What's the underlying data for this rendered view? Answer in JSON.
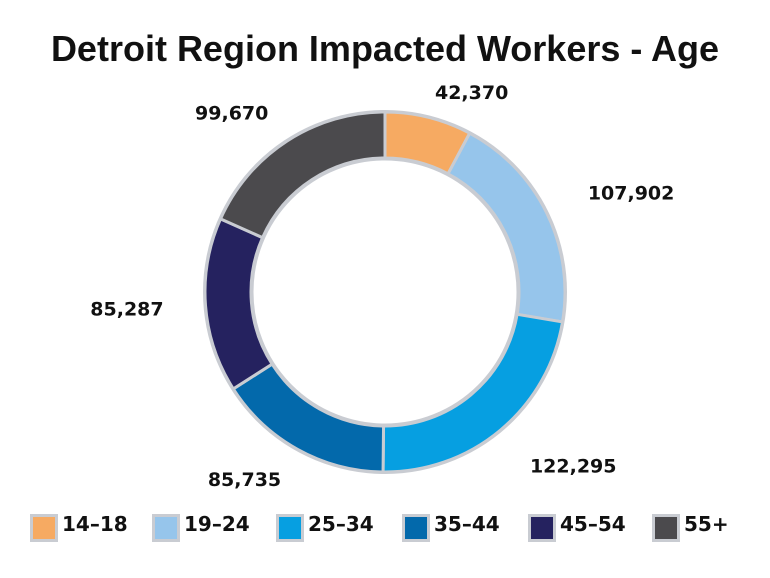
{
  "chart_data": {
    "type": "pie",
    "title": "Detroit Region Impacted Workers - Age",
    "categories": [
      "14–18",
      "19–24",
      "25–34",
      "35–44",
      "45–54",
      "55+"
    ],
    "values": [
      42370,
      107902,
      122295,
      85735,
      85287,
      99670
    ],
    "value_labels": [
      "42,370",
      "107,902",
      "122,295",
      "85,735",
      "85,287",
      "99,670"
    ],
    "colors": [
      "#F6AA62",
      "#96C5EB",
      "#069FE1",
      "#0369AB",
      "#25225F",
      "#4B4A4D"
    ],
    "donut": true,
    "legend_position": "bottom"
  },
  "legend": {
    "items": [
      {
        "label": "14–18",
        "color": "#F6AA62"
      },
      {
        "label": "19–24",
        "color": "#96C5EB"
      },
      {
        "label": "25–34",
        "color": "#069FE1"
      },
      {
        "label": "35–44",
        "color": "#0369AB"
      },
      {
        "label": "45–54",
        "color": "#25225F"
      },
      {
        "label": "55+",
        "color": "#4B4A4D"
      }
    ]
  }
}
